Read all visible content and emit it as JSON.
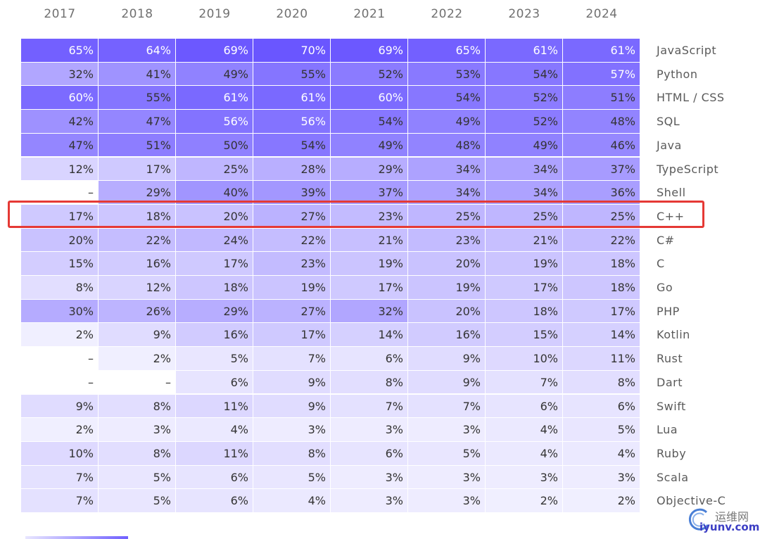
{
  "chart_data": {
    "type": "heatmap",
    "years": [
      "2017",
      "2018",
      "2019",
      "2020",
      "2021",
      "2022",
      "2023",
      "2024"
    ],
    "rows": [
      {
        "language": "JavaScript",
        "values": [
          "65%",
          "64%",
          "69%",
          "70%",
          "69%",
          "65%",
          "61%",
          "61%"
        ]
      },
      {
        "language": "Python",
        "values": [
          "32%",
          "41%",
          "49%",
          "55%",
          "52%",
          "53%",
          "54%",
          "57%"
        ]
      },
      {
        "language": "HTML / CSS",
        "values": [
          "60%",
          "55%",
          "61%",
          "61%",
          "60%",
          "54%",
          "52%",
          "51%"
        ]
      },
      {
        "language": "SQL",
        "values": [
          "42%",
          "47%",
          "56%",
          "56%",
          "54%",
          "49%",
          "52%",
          "48%"
        ]
      },
      {
        "language": "Java",
        "values": [
          "47%",
          "51%",
          "50%",
          "54%",
          "49%",
          "48%",
          "49%",
          "46%"
        ]
      },
      {
        "language": "TypeScript",
        "values": [
          "12%",
          "17%",
          "25%",
          "28%",
          "29%",
          "34%",
          "34%",
          "37%"
        ]
      },
      {
        "language": "Shell",
        "values": [
          "–",
          "29%",
          "40%",
          "39%",
          "37%",
          "34%",
          "34%",
          "36%"
        ]
      },
      {
        "language": "C++",
        "values": [
          "17%",
          "18%",
          "20%",
          "27%",
          "23%",
          "25%",
          "25%",
          "25%"
        ]
      },
      {
        "language": "C#",
        "values": [
          "20%",
          "22%",
          "24%",
          "22%",
          "21%",
          "23%",
          "21%",
          "22%"
        ]
      },
      {
        "language": "C",
        "values": [
          "15%",
          "16%",
          "17%",
          "23%",
          "19%",
          "20%",
          "19%",
          "18%"
        ]
      },
      {
        "language": "Go",
        "values": [
          "8%",
          "12%",
          "18%",
          "19%",
          "17%",
          "19%",
          "17%",
          "18%"
        ]
      },
      {
        "language": "PHP",
        "values": [
          "30%",
          "26%",
          "29%",
          "27%",
          "32%",
          "20%",
          "18%",
          "17%"
        ]
      },
      {
        "language": "Kotlin",
        "values": [
          "2%",
          "9%",
          "16%",
          "17%",
          "14%",
          "16%",
          "15%",
          "14%"
        ]
      },
      {
        "language": "Rust",
        "values": [
          "–",
          "2%",
          "5%",
          "7%",
          "6%",
          "9%",
          "10%",
          "11%"
        ]
      },
      {
        "language": "Dart",
        "values": [
          "–",
          "–",
          "6%",
          "9%",
          "8%",
          "9%",
          "7%",
          "8%"
        ]
      },
      {
        "language": "Swift",
        "values": [
          "9%",
          "8%",
          "11%",
          "9%",
          "7%",
          "7%",
          "6%",
          "6%"
        ]
      },
      {
        "language": "Lua",
        "values": [
          "2%",
          "3%",
          "4%",
          "3%",
          "3%",
          "3%",
          "4%",
          "5%"
        ]
      },
      {
        "language": "Ruby",
        "values": [
          "10%",
          "8%",
          "11%",
          "8%",
          "6%",
          "5%",
          "4%",
          "4%"
        ]
      },
      {
        "language": "Scala",
        "values": [
          "7%",
          "5%",
          "6%",
          "5%",
          "3%",
          "3%",
          "3%",
          "3%"
        ]
      },
      {
        "language": "Objective-C",
        "values": [
          "7%",
          "5%",
          "6%",
          "4%",
          "3%",
          "3%",
          "2%",
          "2%"
        ]
      }
    ],
    "highlighted_row": "C++",
    "color_low": "#f6f5ff",
    "color_high": "#6a56ff",
    "highlight_color": "#e53935"
  },
  "watermark": {
    "text_cn": "运维网",
    "text_en": "iyunv.com"
  }
}
